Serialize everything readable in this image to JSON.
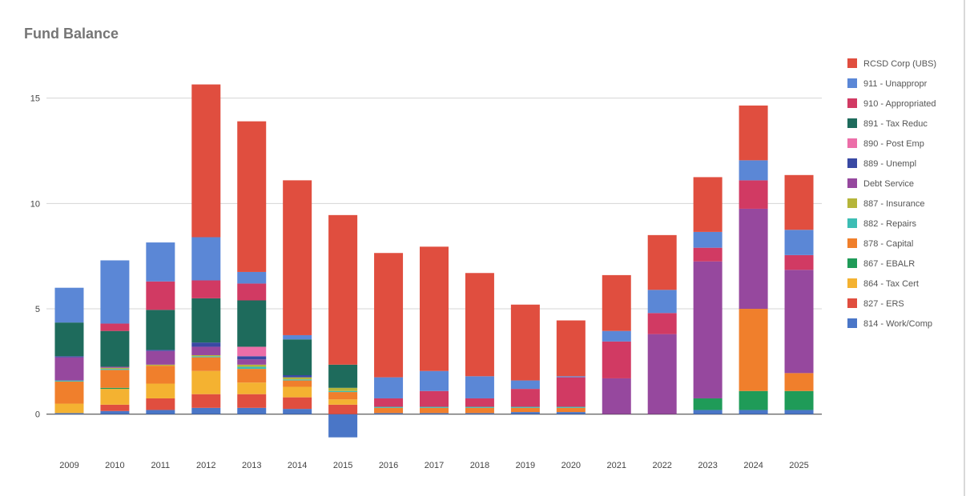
{
  "chart_data": {
    "type": "bar",
    "stacked": true,
    "title": "Fund Balance",
    "xlabel": "",
    "ylabel": "",
    "ylim": [
      -1.15,
      17
    ],
    "yticks": [
      0,
      5,
      10,
      15
    ],
    "grid": true,
    "legend_position": "right",
    "categories": [
      "2009",
      "2010",
      "2011",
      "2012",
      "2013",
      "2014",
      "2015",
      "2016",
      "2017",
      "2018",
      "2019",
      "2020",
      "2021",
      "2022",
      "2023",
      "2024",
      "2025"
    ],
    "series": [
      {
        "name": "814 - Work/Comp",
        "color": "#4a76c7",
        "values": [
          0.05,
          0.15,
          0.2,
          0.3,
          0.3,
          0.25,
          -1.1,
          0.05,
          0.05,
          0.05,
          0.1,
          0.1,
          0,
          0,
          0.2,
          0.2,
          0.2
        ]
      },
      {
        "name": "827 - ERS",
        "color": "#e04e3f",
        "values": [
          0,
          0.3,
          0.55,
          0.65,
          0.65,
          0.55,
          0.45,
          0,
          0,
          0,
          0,
          0,
          0,
          0,
          0,
          0,
          0
        ]
      },
      {
        "name": "864 - Tax Cert",
        "color": "#f4b231",
        "values": [
          0.45,
          0.75,
          0.7,
          1.1,
          0.55,
          0.5,
          0.25,
          0,
          0,
          0,
          0,
          0,
          0,
          0,
          0,
          0,
          0
        ]
      },
      {
        "name": "867 - EBALR",
        "color": "#1f9b58",
        "values": [
          0,
          0.05,
          0,
          0,
          0,
          0,
          0,
          0,
          0,
          0,
          0,
          0,
          0,
          0,
          0.55,
          0.9,
          0.9
        ]
      },
      {
        "name": "878 - Capital",
        "color": "#f07f2c",
        "values": [
          1.05,
          0.85,
          0.85,
          0.65,
          0.65,
          0.3,
          0.35,
          0.25,
          0.25,
          0.25,
          0.2,
          0.2,
          0,
          0,
          0,
          3.9,
          0.85
        ]
      },
      {
        "name": "882 - Repairs",
        "color": "#3dbdb4",
        "values": [
          0.05,
          0.05,
          0,
          0.05,
          0.1,
          0.05,
          0.05,
          0.05,
          0.05,
          0.05,
          0.05,
          0.05,
          0,
          0,
          0,
          0,
          0
        ]
      },
      {
        "name": "887 - Insurance",
        "color": "#b5b53a",
        "values": [
          0,
          0.05,
          0.05,
          0.05,
          0.1,
          0.1,
          0.15,
          0,
          0,
          0,
          0,
          0,
          0,
          0,
          0,
          0,
          0
        ]
      },
      {
        "name": "Debt Service",
        "color": "#96489e",
        "values": [
          1.1,
          0.05,
          0.65,
          0.4,
          0.25,
          0,
          0,
          0,
          0,
          0,
          0,
          0,
          1.7,
          3.8,
          6.5,
          4.75,
          4.9
        ]
      },
      {
        "name": "889 - Unempl",
        "color": "#3949a3",
        "values": [
          0.05,
          0,
          0.05,
          0.2,
          0.15,
          0.1,
          0,
          0,
          0,
          0,
          0,
          0,
          0,
          0,
          0,
          0,
          0
        ]
      },
      {
        "name": "890 - Post Emp",
        "color": "#ec6ea8",
        "values": [
          0,
          0,
          0,
          0,
          0.45,
          0,
          0,
          0,
          0,
          0,
          0,
          0,
          0,
          0,
          0,
          0,
          0
        ]
      },
      {
        "name": "891 - Tax Reduc",
        "color": "#1e6b5c",
        "values": [
          1.6,
          1.7,
          1.9,
          2.1,
          2.2,
          1.7,
          1.1,
          0,
          0,
          0,
          0,
          0,
          0,
          0,
          0,
          0,
          0
        ]
      },
      {
        "name": "910 - Appropriated",
        "color": "#d13a63",
        "values": [
          0,
          0.35,
          1.35,
          0.85,
          0.8,
          0,
          0,
          0.4,
          0.75,
          0.4,
          0.85,
          1.4,
          1.75,
          1.0,
          0.65,
          1.35,
          0.7
        ]
      },
      {
        "name": "911 - Unappropr",
        "color": "#5b87d6",
        "values": [
          1.65,
          3.0,
          1.85,
          2.05,
          0.55,
          0.2,
          0,
          1.0,
          0.95,
          1.05,
          0.4,
          0.05,
          0.5,
          1.1,
          0.75,
          0.95,
          1.2
        ]
      },
      {
        "name": "RCSD Corp (UBS)",
        "color": "#e04e3f",
        "values": [
          0,
          0,
          0,
          7.25,
          7.15,
          7.35,
          7.1,
          5.9,
          5.9,
          4.9,
          3.6,
          2.65,
          2.65,
          2.6,
          2.6,
          2.6,
          2.6
        ]
      }
    ]
  }
}
